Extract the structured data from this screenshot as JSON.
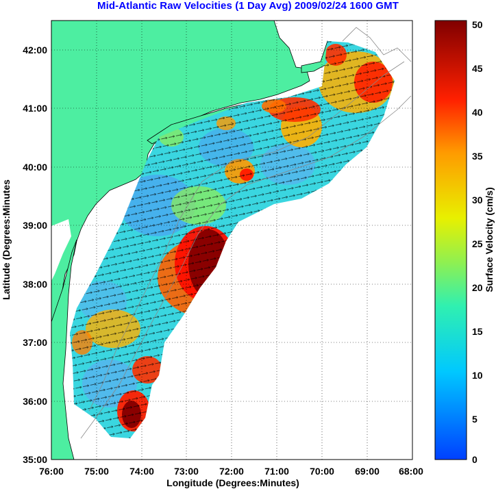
{
  "title": "Mid-Atlantic Raw Velocities (1 Day Avg) 2009/02/24 1600 GMT",
  "map": {
    "xlabel": "Longitude (Degrees:Minutes)",
    "ylabel": "Latitude (Degrees:Minutes",
    "x_ticks": [
      "76:00",
      "75:00",
      "74:00",
      "73:00",
      "72:00",
      "71:00",
      "70:00",
      "69:00",
      "68:00"
    ],
    "y_ticks": [
      "35:00",
      "36:00",
      "37:00",
      "38:00",
      "39:00",
      "40:00",
      "41:00",
      "42:00"
    ],
    "lon_range": [
      -76,
      -68
    ],
    "lat_range": [
      35,
      42.5
    ],
    "grid": "dotted",
    "land_color": "#4deea1",
    "water_color": "#ffffff"
  },
  "colorbar": {
    "label": "Surface Velocity (cm/s)",
    "ticks": [
      "0",
      "5",
      "10",
      "15",
      "20",
      "25",
      "30",
      "35",
      "40",
      "45",
      "50"
    ],
    "range": [
      0,
      50
    ],
    "colormap": "jet"
  }
}
